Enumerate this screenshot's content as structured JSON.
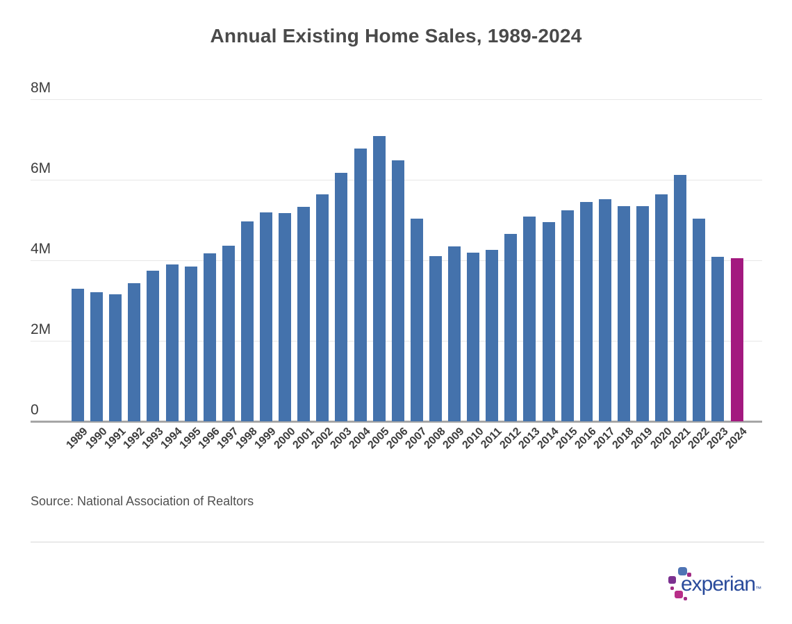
{
  "title": "Annual Existing Home Sales, 1989-2024",
  "source_note": "Source: National Association of Realtors",
  "logo": {
    "wordmark": "experian",
    "trademark": "™",
    "dot_colors": [
      "#4f74b4",
      "#a12c84",
      "#7c3190",
      "#a12c84",
      "#b82e88",
      "#a12c84"
    ]
  },
  "colors": {
    "bar": "#4472ac",
    "bar_highlight": "#a3197f",
    "wordmark_blue": "#2a4b9b",
    "title_text": "#4a4a4a",
    "axis_text": "#3c3c3c",
    "gridline": "#e7e7e7",
    "axis_line": "#a6a6a6"
  },
  "chart_data": {
    "type": "bar",
    "title": "Annual Existing Home Sales, 1989-2024",
    "xlabel": "",
    "ylabel": "",
    "unit": "millions of homes",
    "ylim": [
      0,
      8
    ],
    "yticks": [
      "0",
      "2M",
      "4M",
      "6M",
      "8M"
    ],
    "grid": true,
    "legend": "none",
    "highlight_category": "2024",
    "categories": [
      "1989",
      "1990",
      "1991",
      "1992",
      "1993",
      "1994",
      "1995",
      "1996",
      "1997",
      "1998",
      "1999",
      "2000",
      "2001",
      "2002",
      "2003",
      "2004",
      "2005",
      "2006",
      "2007",
      "2008",
      "2009",
      "2010",
      "2011",
      "2012",
      "2013",
      "2014",
      "2015",
      "2016",
      "2017",
      "2018",
      "2019",
      "2020",
      "2021",
      "2022",
      "2023",
      "2024"
    ],
    "values": [
      3.29,
      3.21,
      3.15,
      3.43,
      3.74,
      3.89,
      3.85,
      4.17,
      4.37,
      4.97,
      5.19,
      5.17,
      5.33,
      5.63,
      6.18,
      6.78,
      7.08,
      6.48,
      5.03,
      4.11,
      4.34,
      4.19,
      4.26,
      4.66,
      5.09,
      4.94,
      5.25,
      5.45,
      5.51,
      5.34,
      5.34,
      5.64,
      6.12,
      5.03,
      4.09,
      4.06
    ]
  }
}
